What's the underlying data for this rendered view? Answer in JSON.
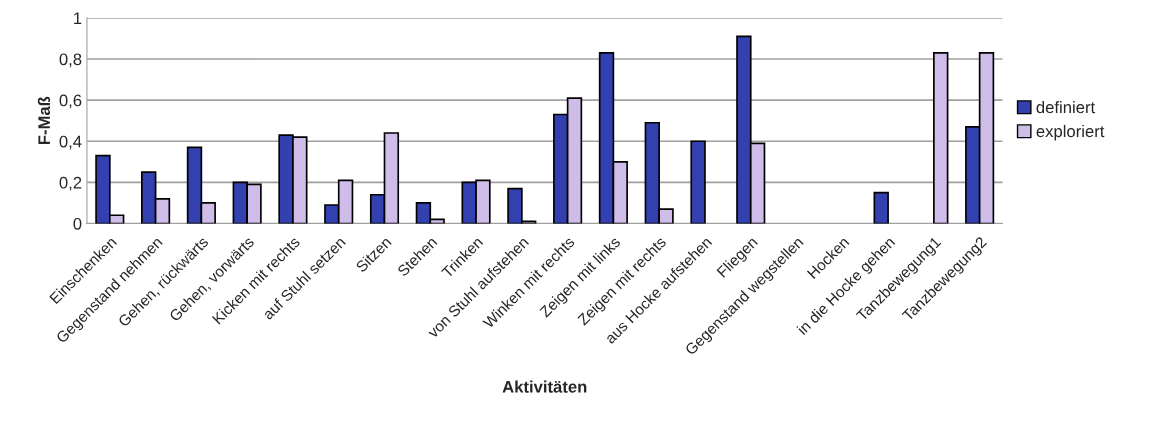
{
  "chart_data": {
    "type": "bar",
    "xlabel": "Aktivitäten",
    "ylabel": "F-Maß",
    "categories": [
      "Einschenken",
      "Gegenstand nehmen",
      "Gehen, rückwärts",
      "Gehen, vorwärts",
      "Kicken mit rechts",
      "auf Stuhl setzen",
      "Sitzen",
      "Stehen",
      "Trinken",
      "von Stuhl aufstehen",
      "Winken mit rechts",
      "Zeigen mit links",
      "Zeigen mit rechts",
      "aus Hocke aufstehen",
      "Fliegen",
      "Gegenstand wegstellen",
      "Hocken",
      "in die Hocke gehen",
      "Tanzbewegung1",
      "Tanzbewegung2"
    ],
    "series": [
      {
        "name": "definiert",
        "color": "#3340b0",
        "values": [
          0.33,
          0.25,
          0.37,
          0.2,
          0.43,
          0.09,
          0.14,
          0.1,
          0.2,
          0.17,
          0.53,
          0.83,
          0.49,
          0.4,
          0.91,
          0,
          0,
          0.15,
          0,
          0.47
        ]
      },
      {
        "name": "exploriert",
        "color": "#d0bce8",
        "values": [
          0.04,
          0.12,
          0.1,
          0.19,
          0.42,
          0.21,
          0.44,
          0.02,
          0.21,
          0.01,
          0.61,
          0.3,
          0.07,
          0,
          0.39,
          0,
          0,
          0,
          0.83,
          0.83
        ]
      }
    ],
    "ylim": [
      0,
      1
    ],
    "yticks": [
      0,
      {
        "value": 0.2,
        "label": "0,2"
      },
      {
        "value": 0.4,
        "label": "0,4"
      },
      {
        "value": 0.6,
        "label": "0,6"
      },
      {
        "value": 0.8,
        "label": "0,8"
      },
      1
    ],
    "grid": "y",
    "legend": "right"
  }
}
